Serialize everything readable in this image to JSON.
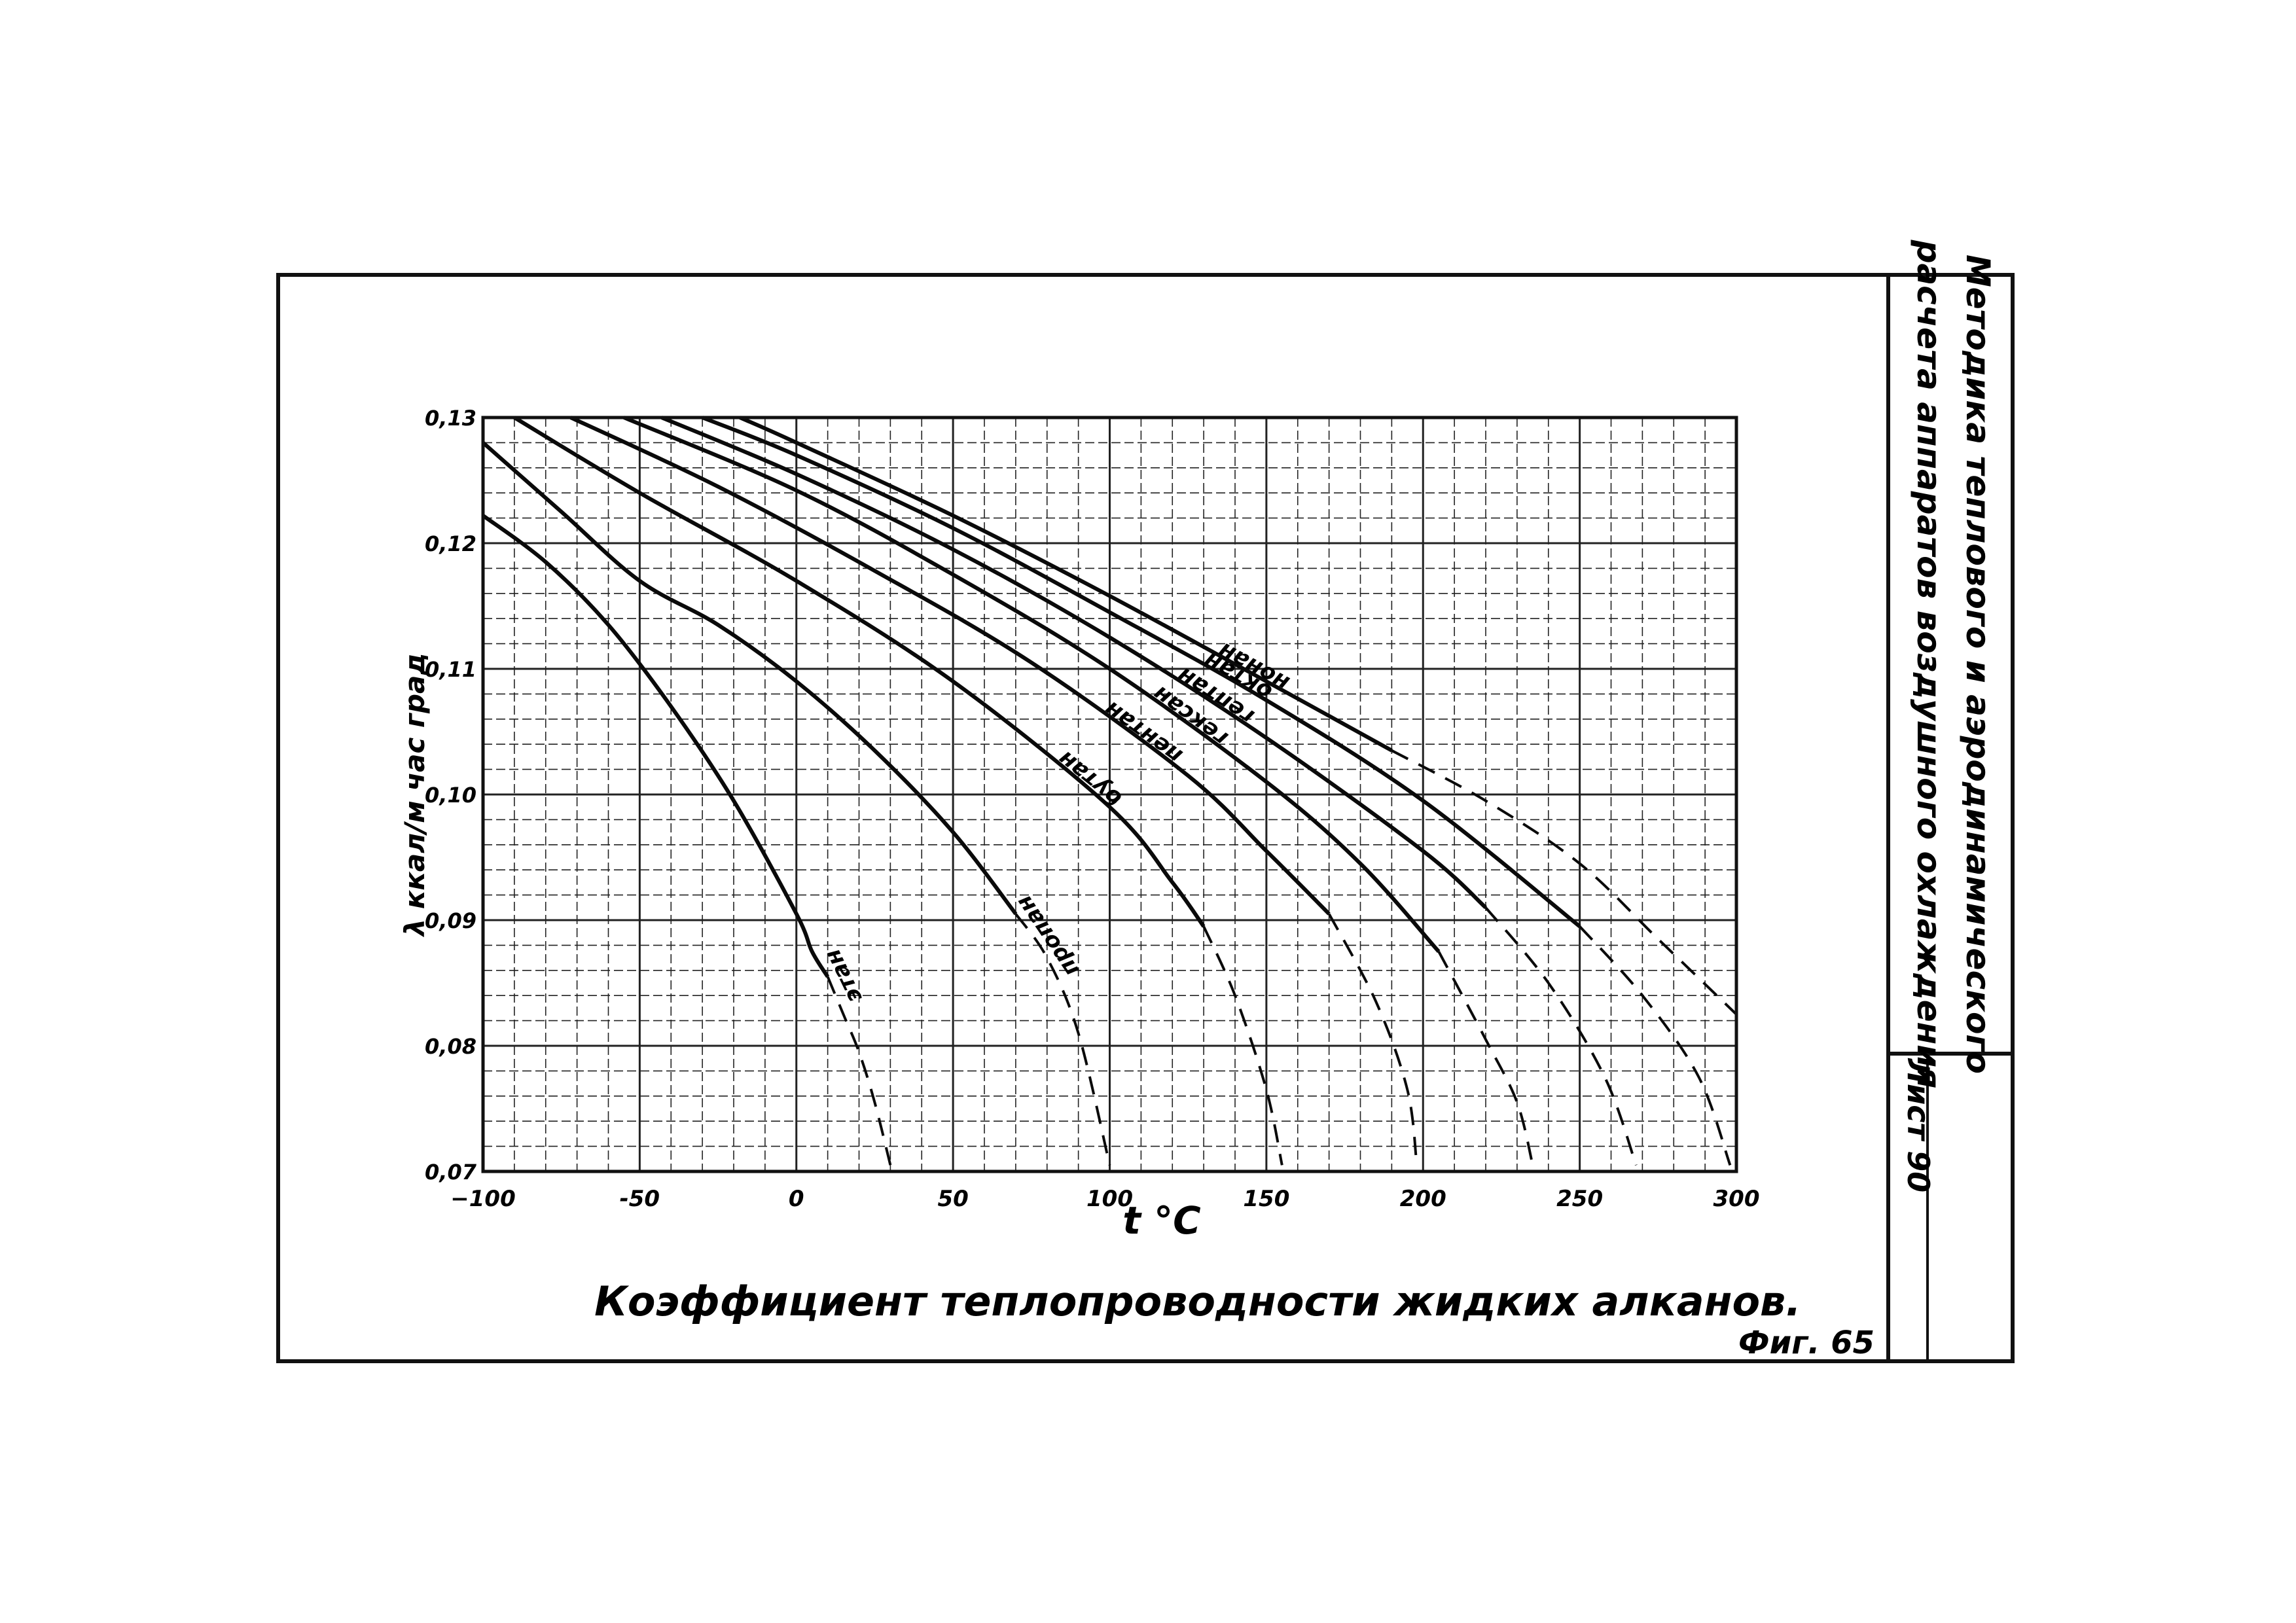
{
  "sheet": {
    "side_title_line1": "Методика теплового и аэродинамического",
    "side_title_line2": "расчета аппаратов воздушного охлаждения",
    "sheet_label": "Лист 90",
    "figure_label": "Фиг. 65"
  },
  "chart_data": {
    "type": "line",
    "title": "Коэффициент теплопроводности жидких алканов.",
    "xlabel": "t °C",
    "ylabel": "λ ккал/м час град",
    "xlim": [
      -100,
      300
    ],
    "ylim": [
      0.07,
      0.13
    ],
    "x_ticks": [
      -100,
      -50,
      0,
      50,
      100,
      150,
      200,
      250,
      300
    ],
    "x_tick_labels": [
      "−100",
      "-50",
      "0",
      "50",
      "100",
      "150",
      "200",
      "250",
      "300"
    ],
    "y_ticks": [
      0.07,
      0.08,
      0.09,
      0.1,
      0.11,
      0.12,
      0.13
    ],
    "y_tick_labels": [
      "0,07",
      "0,08",
      "0,09",
      "0,10",
      "0,11",
      "0,12",
      "0,13"
    ],
    "grid": true,
    "legend": "labels on curves",
    "series": [
      {
        "name": "этан",
        "solid": [
          [
            -100,
            0.1222
          ],
          [
            -80,
            0.1185
          ],
          [
            -60,
            0.1135
          ],
          [
            -40,
            0.107
          ],
          [
            -20,
            0.0995
          ],
          [
            0,
            0.0905
          ],
          [
            5,
            0.0875
          ],
          [
            10,
            0.0855
          ]
        ],
        "dashed": [
          [
            10,
            0.0855
          ],
          [
            15,
            0.0825
          ],
          [
            20,
            0.0795
          ],
          [
            25,
            0.0755
          ],
          [
            30,
            0.0705
          ]
        ]
      },
      {
        "name": "пропан",
        "solid": [
          [
            -100,
            0.128
          ],
          [
            -75,
            0.1225
          ],
          [
            -50,
            0.117
          ],
          [
            -25,
            0.1135
          ],
          [
            0,
            0.109
          ],
          [
            25,
            0.1035
          ],
          [
            50,
            0.097
          ],
          [
            70,
            0.0905
          ]
        ],
        "dashed": [
          [
            70,
            0.0905
          ],
          [
            80,
            0.087
          ],
          [
            90,
            0.081
          ],
          [
            100,
            0.0705
          ]
        ]
      },
      {
        "name": "бутан",
        "solid": [
          [
            -90,
            0.13
          ],
          [
            -50,
            0.124
          ],
          [
            0,
            0.117
          ],
          [
            50,
            0.109
          ],
          [
            100,
            0.099
          ],
          [
            120,
            0.093
          ],
          [
            130,
            0.0895
          ]
        ],
        "dashed": [
          [
            130,
            0.0895
          ],
          [
            140,
            0.084
          ],
          [
            150,
            0.0765
          ],
          [
            155,
            0.0705
          ]
        ]
      },
      {
        "name": "пентан",
        "solid": [
          [
            -72,
            0.13
          ],
          [
            -25,
            0.1245
          ],
          [
            25,
            0.1178
          ],
          [
            75,
            0.1105
          ],
          [
            125,
            0.1015
          ],
          [
            150,
            0.0955
          ],
          [
            170,
            0.0905
          ]
        ],
        "dashed": [
          [
            170,
            0.0905
          ],
          [
            185,
            0.0835
          ],
          [
            195,
            0.0765
          ],
          [
            198,
            0.0705
          ]
        ]
      },
      {
        "name": "гексан",
        "solid": [
          [
            -55,
            0.13
          ],
          [
            0,
            0.1242
          ],
          [
            50,
            0.1175
          ],
          [
            100,
            0.11
          ],
          [
            150,
            0.101
          ],
          [
            180,
            0.0945
          ],
          [
            205,
            0.0875
          ]
        ],
        "dashed": [
          [
            205,
            0.0875
          ],
          [
            220,
            0.0805
          ],
          [
            230,
            0.0755
          ],
          [
            235,
            0.0705
          ]
        ]
      },
      {
        "name": "гептан",
        "solid": [
          [
            -43,
            0.13
          ],
          [
            0,
            0.1255
          ],
          [
            50,
            0.1195
          ],
          [
            100,
            0.1125
          ],
          [
            150,
            0.1045
          ],
          [
            200,
            0.0955
          ],
          [
            220,
            0.091
          ]
        ],
        "dashed": [
          [
            220,
            0.091
          ],
          [
            240,
            0.085
          ],
          [
            258,
            0.0775
          ],
          [
            268,
            0.0705
          ]
        ]
      },
      {
        "name": "октан",
        "solid": [
          [
            -30,
            0.13
          ],
          [
            0,
            0.127
          ],
          [
            50,
            0.1212
          ],
          [
            100,
            0.1145
          ],
          [
            150,
            0.1075
          ],
          [
            200,
            0.0995
          ],
          [
            250,
            0.0895
          ]
        ],
        "dashed": [
          [
            250,
            0.0895
          ],
          [
            270,
            0.084
          ],
          [
            288,
            0.0775
          ],
          [
            298,
            0.0705
          ]
        ]
      },
      {
        "name": "нонан",
        "solid": [
          [
            -18,
            0.13
          ],
          [
            0,
            0.128
          ],
          [
            50,
            0.1222
          ],
          [
            100,
            0.1158
          ],
          [
            150,
            0.109
          ],
          [
            190,
            0.1035
          ]
        ],
        "dashed": [
          [
            190,
            0.1035
          ],
          [
            220,
            0.0995
          ],
          [
            250,
            0.0945
          ],
          [
            275,
            0.0885
          ],
          [
            300,
            0.0825
          ]
        ]
      }
    ]
  }
}
